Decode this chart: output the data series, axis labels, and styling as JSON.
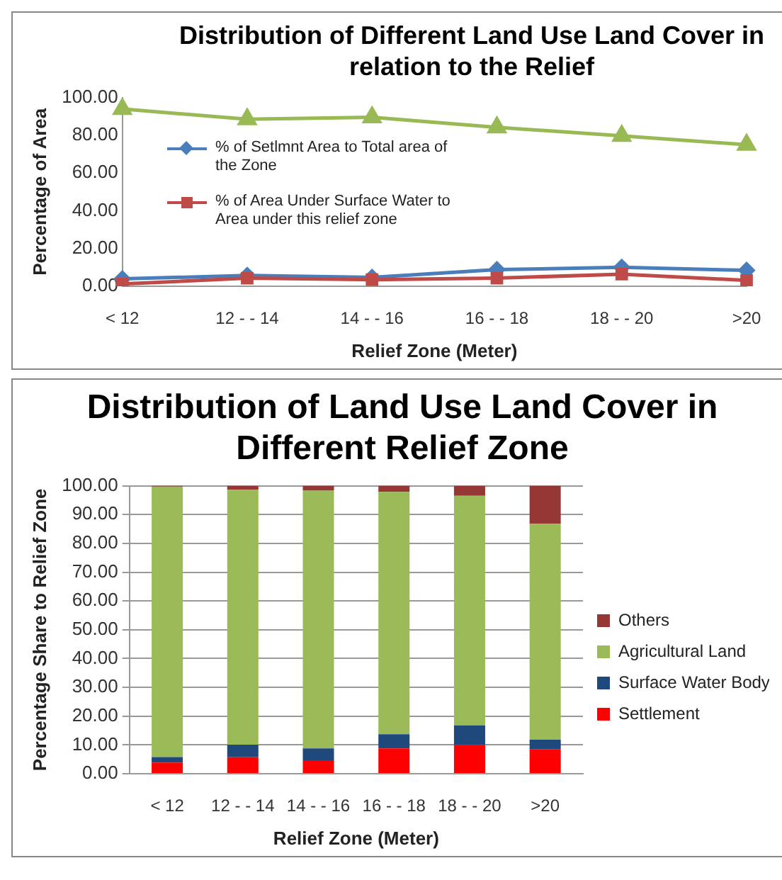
{
  "chart_data": [
    {
      "type": "line",
      "title": "Distribution of Different Land Use Land Cover in relation to the Relief",
      "xlabel": "Relief Zone (Meter)",
      "ylabel": "Percentage of Area",
      "categories": [
        "< 12",
        "12 - - 14",
        "14 - - 16",
        "16 - - 18",
        "18 - - 20",
        ">20"
      ],
      "series": [
        {
          "name": "% of Setlmnt Area to Total area of the Zone",
          "color": "#4a7ebb",
          "marker": "diamond",
          "values": [
            3.9,
            5.7,
            4.7,
            8.8,
            10.0,
            8.4
          ]
        },
        {
          "name": "% of Area Under Surface Water to Area under this relief zone",
          "color": "#be4b48",
          "marker": "square",
          "values": [
            1.2,
            4.3,
            3.5,
            4.3,
            6.4,
            3.1
          ]
        },
        {
          "color": "#98b954",
          "marker": "triangle",
          "values": [
            93.9,
            88.5,
            89.5,
            84.2,
            79.7,
            75.0
          ]
        }
      ],
      "ylim": [
        0,
        100
      ],
      "yticks": [
        {
          "value": 0,
          "label": "0.00"
        },
        {
          "value": 20,
          "label": "20.00"
        },
        {
          "value": 40,
          "label": "40.00"
        },
        {
          "value": 60,
          "label": "60.00"
        },
        {
          "value": 80,
          "label": "80.00"
        },
        {
          "value": 100,
          "label": "100.00"
        }
      ],
      "grid": false,
      "legend": "left",
      "line_style": "solid"
    },
    {
      "type": "bar",
      "title": "Distribution of Land Use Land Cover in Different Relief Zone",
      "xlabel": "Relief Zone (Meter)",
      "ylabel": "Percentage Share to Relief Zone",
      "categories": [
        "< 12",
        "12 - - 14",
        "14 - - 16",
        "16 - - 18",
        "18 - - 20",
        ">20"
      ],
      "stacked": true,
      "series": [
        {
          "name": "Settlement",
          "color": "#ff0000",
          "values": [
            3.9,
            5.7,
            4.7,
            8.8,
            10.0,
            8.4
          ]
        },
        {
          "name": "Surface Water Body",
          "color": "#1f497d",
          "values": [
            1.9,
            4.4,
            4.1,
            4.9,
            6.8,
            3.4
          ]
        },
        {
          "name": "Agricultural Land",
          "color": "#9bbb59",
          "values": [
            93.9,
            88.5,
            89.5,
            84.2,
            79.7,
            75.0
          ]
        },
        {
          "name": "Others",
          "color": "#953735",
          "values": [
            0.3,
            1.4,
            1.7,
            2.1,
            3.5,
            13.2
          ]
        }
      ],
      "ylim": [
        0,
        100
      ],
      "yticks": [
        {
          "value": 0,
          "label": "0.00"
        },
        {
          "value": 10,
          "label": "10.00"
        },
        {
          "value": 20,
          "label": "20.00"
        },
        {
          "value": 30,
          "label": "30.00"
        },
        {
          "value": 40,
          "label": "40.00"
        },
        {
          "value": 50,
          "label": "50.00"
        },
        {
          "value": 60,
          "label": "60.00"
        },
        {
          "value": 70,
          "label": "70.00"
        },
        {
          "value": 80,
          "label": "80.00"
        },
        {
          "value": 90,
          "label": "90.00"
        },
        {
          "value": 100,
          "label": "100.00"
        }
      ],
      "grid": "y",
      "legend": "right"
    }
  ]
}
